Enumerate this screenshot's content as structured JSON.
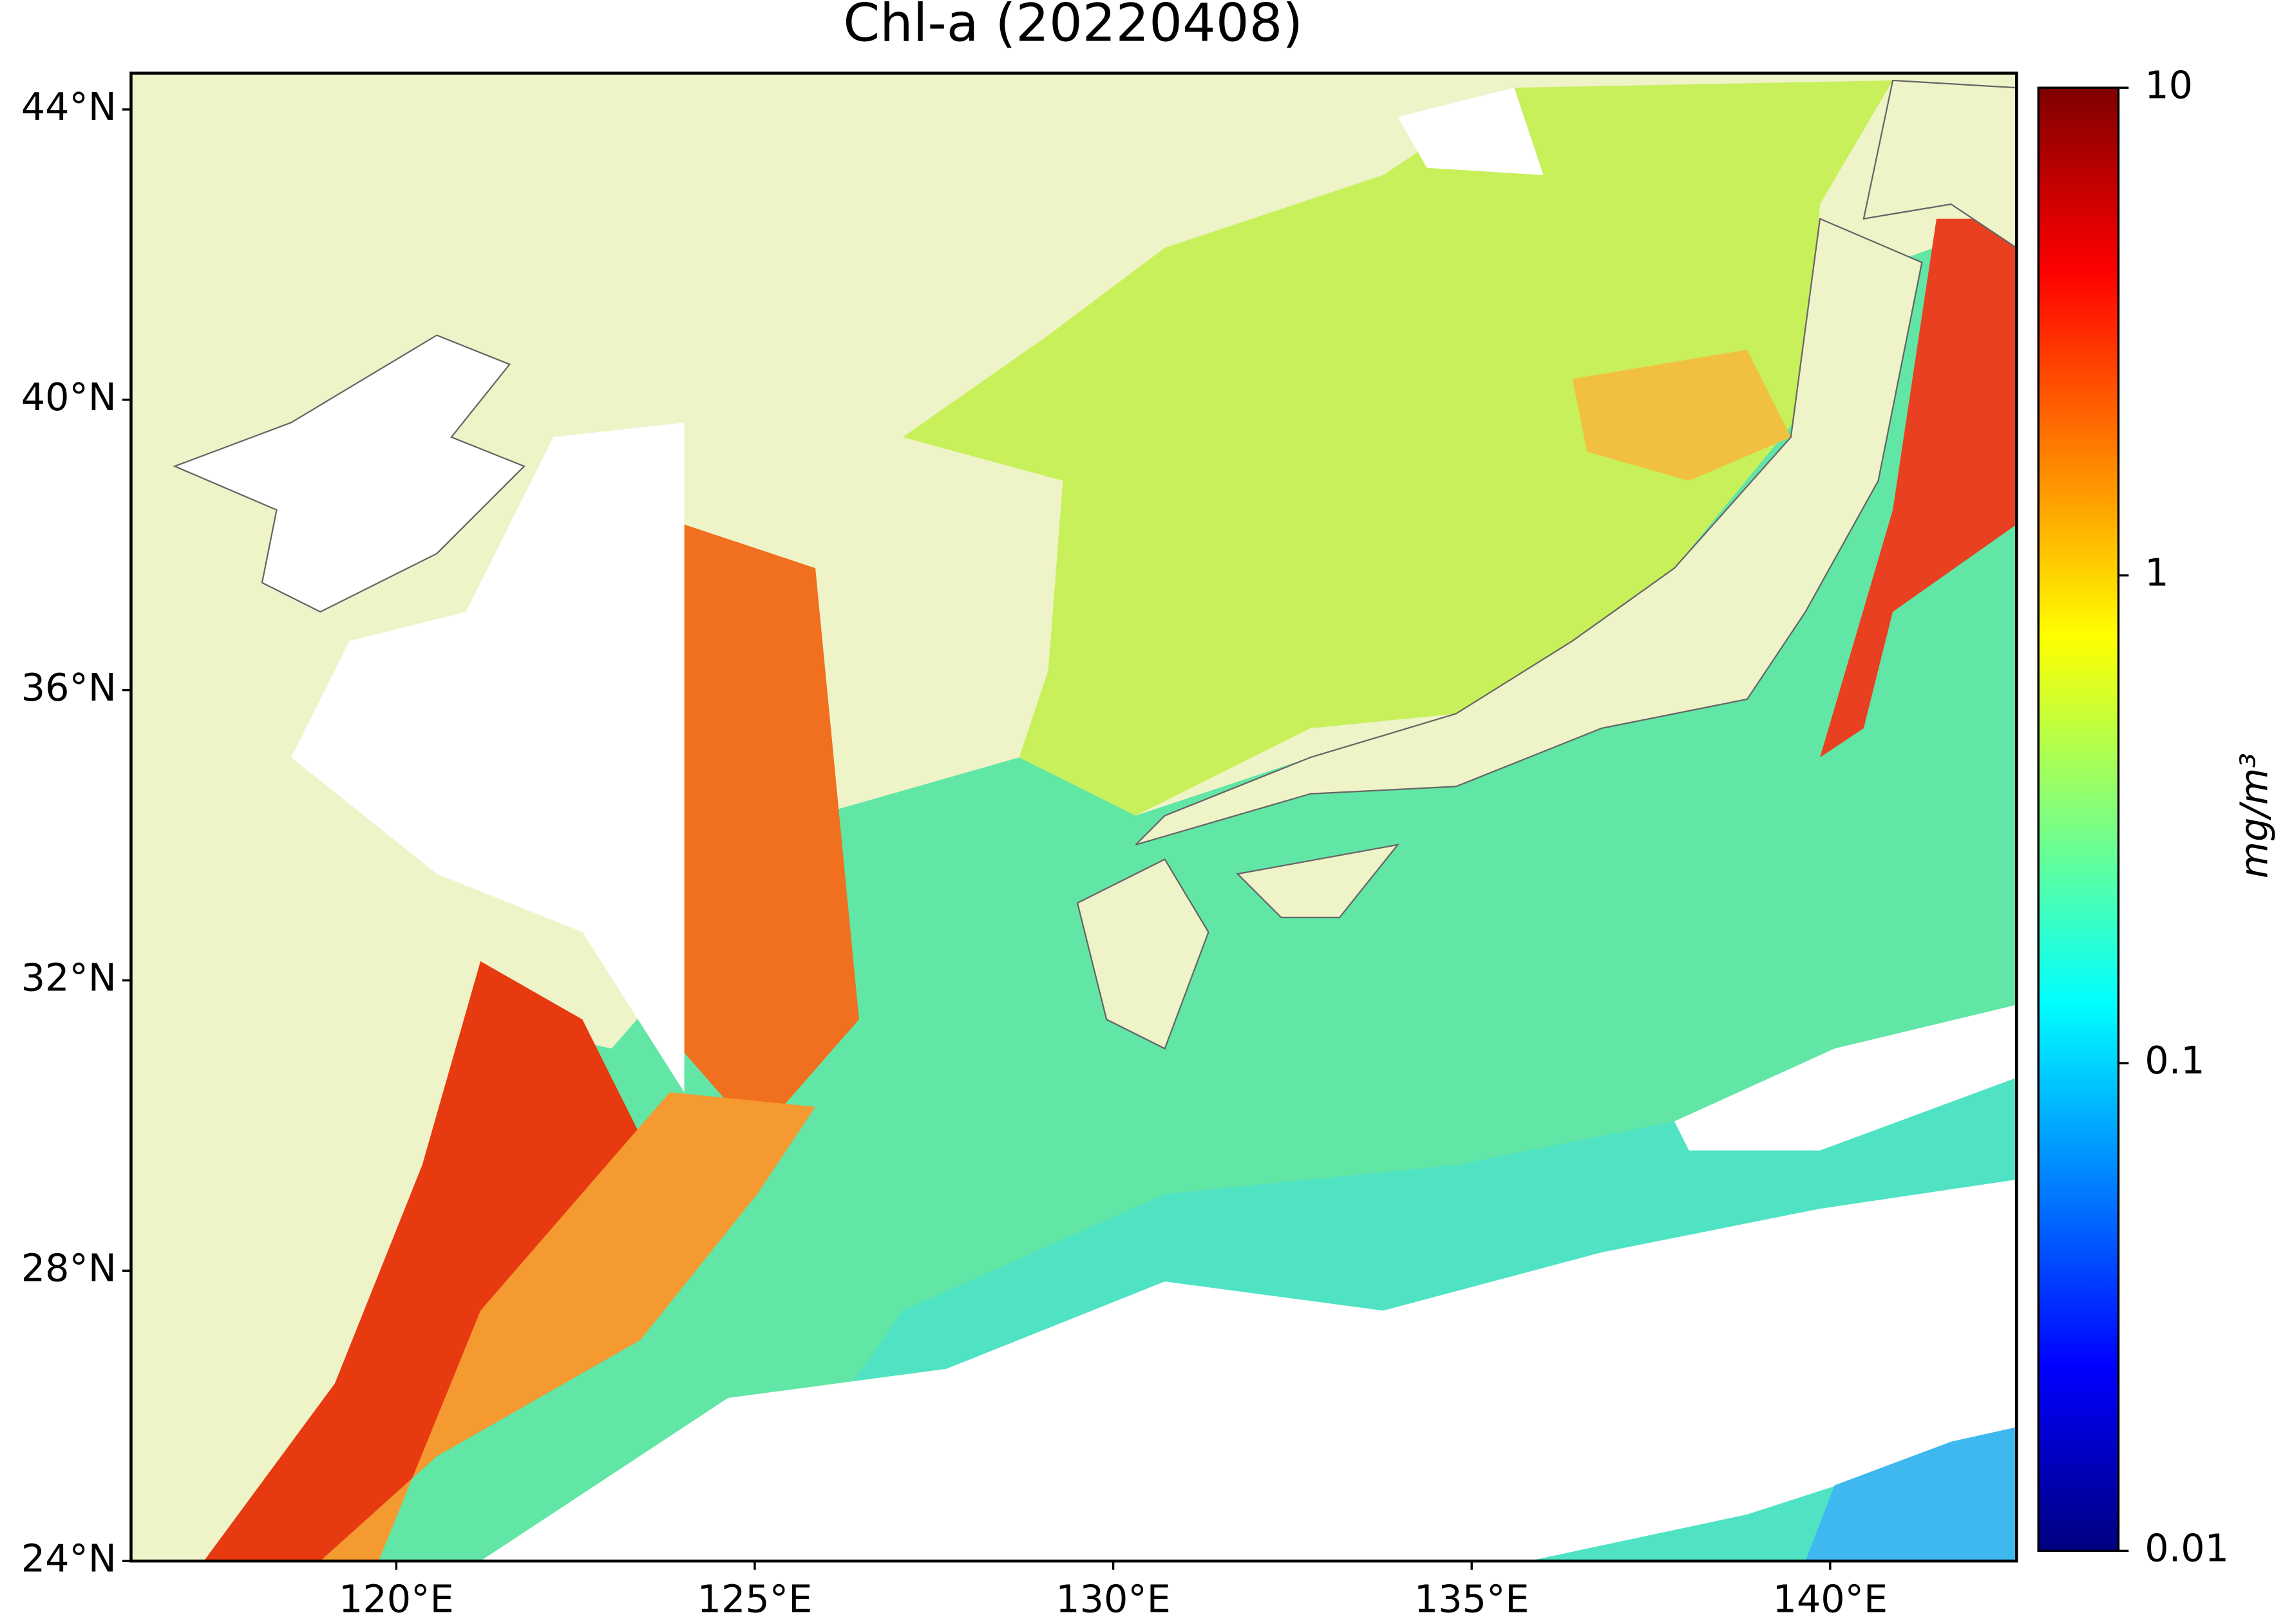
{
  "chart_data": {
    "type": "map",
    "title": "Chl-a (20220408)",
    "xlim": [
      116.3,
      142.6
    ],
    "ylim": [
      24,
      44.5
    ],
    "xticks": [
      {
        "value": 120,
        "label": "120°E"
      },
      {
        "value": 125,
        "label": "125°E"
      },
      {
        "value": 130,
        "label": "130°E"
      },
      {
        "value": 135,
        "label": "135°E"
      },
      {
        "value": 140,
        "label": "140°E"
      }
    ],
    "yticks": [
      {
        "value": 24,
        "label": "24°N"
      },
      {
        "value": 28,
        "label": "28°N"
      },
      {
        "value": 32,
        "label": "32°N"
      },
      {
        "value": 36,
        "label": "36°N"
      },
      {
        "value": 40,
        "label": "40°N"
      },
      {
        "value": 44,
        "label": "44°N"
      }
    ],
    "colorbar": {
      "label": "mg/m³",
      "scale": "log",
      "colormap": "jet",
      "lim": [
        0.01,
        10
      ],
      "ticks": [
        0.01,
        0.1,
        1,
        10
      ]
    }
  }
}
